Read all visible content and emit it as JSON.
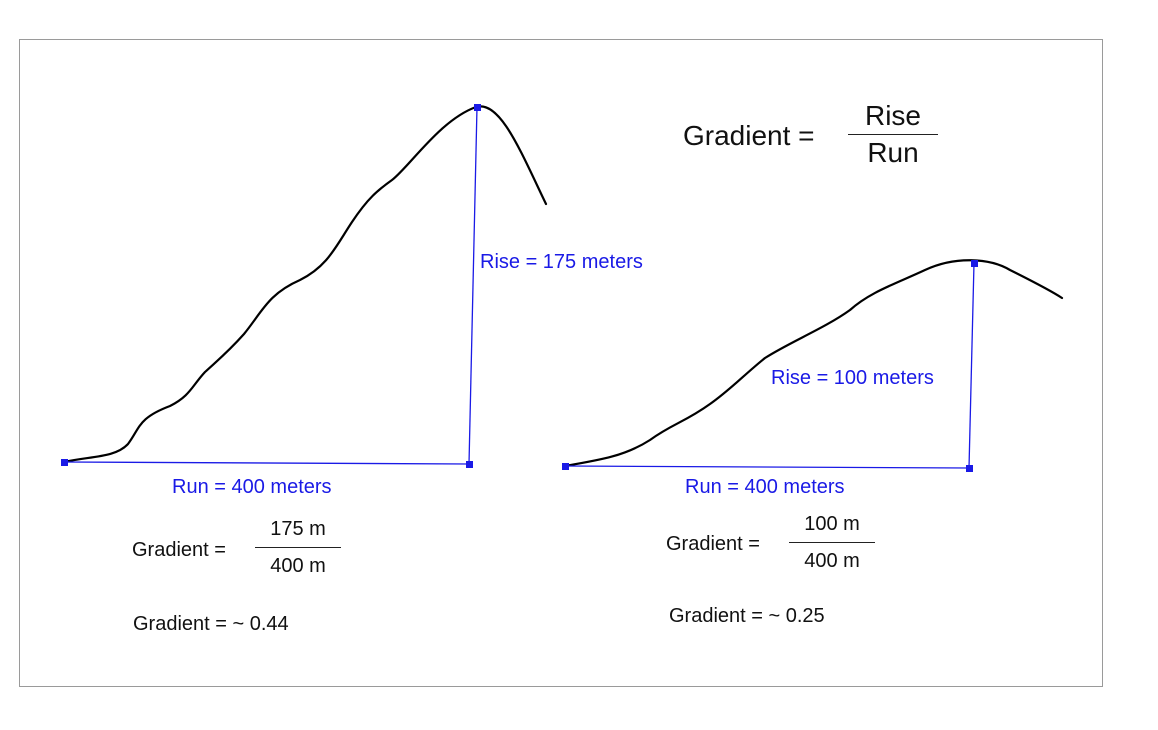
{
  "formula": {
    "lhs": "Gradient =",
    "numerator": "Rise",
    "denominator": "Run"
  },
  "left": {
    "rise_label": "Rise = 175 meters",
    "run_label": "Run = 400 meters",
    "gradient_lhs": "Gradient =",
    "gradient_num": "175 m",
    "gradient_den": "400 m",
    "result": "Gradient  = ~ 0.44"
  },
  "right": {
    "rise_label": "Rise = 100 meters",
    "run_label": "Run = 400 meters",
    "gradient_lhs": "Gradient  =",
    "gradient_num": "100 m",
    "gradient_den": "400 m",
    "result": "Gradient  = ~ 0.25"
  },
  "colors": {
    "measure": "#1a1ae6",
    "curve": "#000000",
    "frame": "#9a9a9a"
  }
}
